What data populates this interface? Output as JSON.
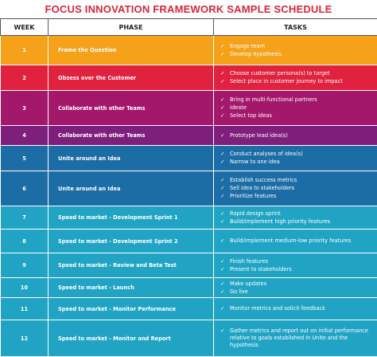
{
  "title": "FOCUS INNOVATION FRAMEWORK SAMPLE SCHEDULE",
  "table": {
    "headers": [
      "WEEK",
      "PHASE",
      "TASKS"
    ],
    "rows": [
      {
        "week": "1",
        "phase": "Frame the Question",
        "tasks": [
          "Engage team",
          "Develop hypothesis"
        ]
      },
      {
        "week": "2",
        "phase": "Obsess over the Customer",
        "tasks": [
          "Choose customer persona(s) to target",
          "Select place in customer journey to impact"
        ]
      },
      {
        "week": "3",
        "phase": "Collaborate with other Teams",
        "tasks": [
          "Bring in multi-functional partners",
          "Ideate",
          "Select top ideas"
        ]
      },
      {
        "week": "4",
        "phase": "Collaborate with other Teams",
        "tasks": [
          "Prototype lead idea(s)"
        ]
      },
      {
        "week": "5",
        "phase": "Unite around an Idea",
        "tasks": [
          "Conduct analyses of idea(s)",
          "Narrow to one idea"
        ]
      },
      {
        "week": "6",
        "phase": "Unite around an Idea",
        "tasks": [
          "Establish success metrics",
          "Sell idea to stakeholders",
          "Prioritize features"
        ]
      },
      {
        "week": "7",
        "phase": "Speed to market - Development Sprint 1",
        "tasks": [
          "Rapid design sprint",
          "Build/implement high priority features"
        ]
      },
      {
        "week": "8",
        "phase": "Speed to market - Development Sprint 2",
        "tasks": [
          "Build/implement medium-low priority features"
        ]
      },
      {
        "week": "9",
        "phase": "Speed to market - Review and Beta Test",
        "tasks": [
          "Finish features",
          "Present to stakeholders"
        ]
      },
      {
        "week": "10",
        "phase": "Speed to market - Launch",
        "tasks": [
          "Make updates",
          "Go live"
        ]
      },
      {
        "week": "11",
        "phase": "Speed to market - Monitor Performance",
        "tasks": [
          "Monitor metrics and solicit feedback"
        ]
      },
      {
        "week": "12",
        "phase": "Speed to market - Monitor and Report",
        "tasks": [
          "Gather metrics and report out on initial performance relative to goals established in Unite and the hypothesis"
        ]
      }
    ]
  }
}
